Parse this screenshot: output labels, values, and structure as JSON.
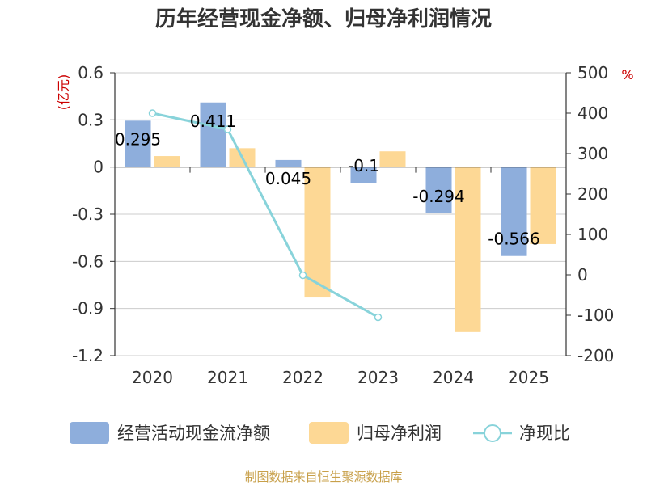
{
  "chart_data": {
    "type": "bar+line",
    "title": "历年经营现金净额、归母净利润情况",
    "categories": [
      "2020",
      "2021",
      "2022",
      "2023",
      "2024",
      "2025"
    ],
    "left_axis": {
      "unit_label": "(亿元)",
      "ylim": [
        -1.2,
        0.6
      ],
      "ticks": [
        0.6,
        0.3,
        0,
        -0.3,
        -0.6,
        -0.9,
        -1.2
      ],
      "tick_labels": [
        "0.6",
        "0.3",
        "0",
        "-0.3",
        "-0.6",
        "-0.9",
        "-1.2"
      ]
    },
    "right_axis": {
      "unit_label": "%",
      "ylim": [
        -200,
        500
      ],
      "ticks": [
        500,
        400,
        300,
        200,
        100,
        0,
        -100,
        -200
      ],
      "tick_labels": [
        "500",
        "400",
        "300",
        "200",
        "100",
        "0",
        "-100",
        "-200"
      ]
    },
    "series": [
      {
        "name": "经营活动现金流净额",
        "type": "bar",
        "axis": "left",
        "values": [
          0.295,
          0.411,
          0.045,
          -0.1,
          -0.294,
          -0.566
        ],
        "labels": [
          "0.295",
          "0.411",
          "0.045",
          "-0.1",
          "-0.294",
          "-0.566"
        ]
      },
      {
        "name": "归母净利润",
        "type": "bar",
        "axis": "left",
        "values": [
          0.07,
          0.12,
          -0.83,
          0.1,
          -1.05,
          -0.49
        ]
      },
      {
        "name": "净现比",
        "type": "line",
        "axis": "right",
        "values": [
          400,
          360,
          -1,
          -105,
          null,
          null
        ]
      }
    ],
    "colors": {
      "cash_flow_bar": "#8eaedc",
      "net_profit_bar": "#fdd895",
      "ratio_line": "#88d3da",
      "unit_label": "#cc0000",
      "source_text": "#c8a04a",
      "grid": "#cccccc"
    },
    "source": "制图数据来自恒生聚源数据库"
  }
}
